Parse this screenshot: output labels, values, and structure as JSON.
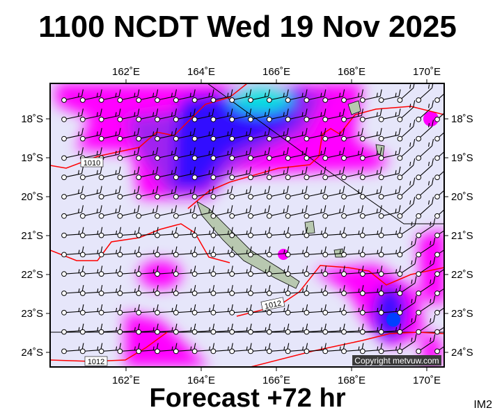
{
  "title": "1100 NCDT Wed 19 Nov 2025",
  "footer": "Forecast +72 hr",
  "image_code": "IM2",
  "copyright": "Copyright metvuw.com",
  "lon_ticks": [
    "162˚E",
    "164˚E",
    "166˚E",
    "168˚E",
    "170˚E"
  ],
  "lat_ticks": [
    "18˚S",
    "19˚S",
    "20˚S",
    "21˚S",
    "22˚S",
    "23˚S",
    "24˚S"
  ],
  "isobar_labels": [
    "1010",
    "1012",
    "1012"
  ],
  "colors": {
    "background": "#e6e6fa",
    "precip_light": "#ff00ff",
    "precip_mid": "#8000ff",
    "precip_heavy": "#0000ff",
    "precip_peak": "#00ffcc",
    "isobar": "#ff0000",
    "land": "#b8c8b0",
    "barb": "#000000"
  }
}
